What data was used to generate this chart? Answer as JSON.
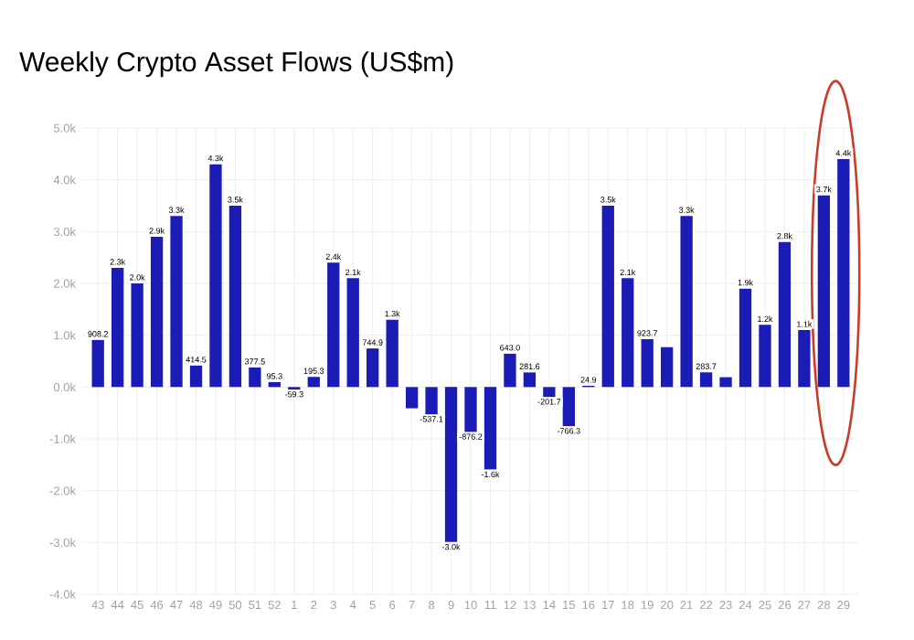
{
  "chart_data": {
    "type": "bar",
    "title": "Weekly Crypto Asset Flows (US$m)",
    "categories": [
      "43",
      "44",
      "45",
      "46",
      "47",
      "48",
      "49",
      "50",
      "51",
      "52",
      "1",
      "2",
      "3",
      "4",
      "5",
      "6",
      "7",
      "8",
      "9",
      "10",
      "11",
      "12",
      "13",
      "14",
      "15",
      "16",
      "17",
      "18",
      "19",
      "20",
      "21",
      "22",
      "23",
      "24",
      "25",
      "26",
      "27",
      "28",
      "29"
    ],
    "values": [
      908.2,
      2300,
      2000,
      2900,
      3300,
      414.5,
      4300,
      3500,
      377.5,
      95.3,
      -59.3,
      195.3,
      2400,
      2100,
      744.9,
      1300,
      -410,
      -537.1,
      -3000,
      -876.2,
      -1600,
      643.0,
      281.6,
      -201.7,
      -766.3,
      24.9,
      3500,
      2100,
      923.7,
      770,
      3300,
      283.7,
      190,
      1900,
      1200,
      2800,
      1100,
      3700,
      4400
    ],
    "value_labels": [
      "908.2",
      "2.3k",
      "2.0k",
      "2.9k",
      "3.3k",
      "414.5",
      "4.3k",
      "3.5k",
      "377.5",
      "95.3",
      "-59.3",
      "195.3",
      "2.4k",
      "2.1k",
      "744.9",
      "1.3k",
      null,
      "-537.1",
      "-3.0k",
      "-876.2",
      "-1.6k",
      "643.0",
      "281.6",
      "-201.7",
      "-766.3",
      "24.9",
      "3.5k",
      "2.1k",
      "923.7",
      null,
      "3.3k",
      "283.7",
      null,
      "1.9k",
      "1.2k",
      "2.8k",
      "1.1k",
      "3.7k",
      "4.4k"
    ],
    "color": "#1b1bb5",
    "ylim": [
      -4000,
      5000
    ],
    "yticks": [
      {
        "value": -4000,
        "label": "-4.0k"
      },
      {
        "value": -3000,
        "label": "-3.0k"
      },
      {
        "value": -2000,
        "label": "-2.0k"
      },
      {
        "value": -1000,
        "label": "-1.0k"
      },
      {
        "value": 0,
        "label": "0.0k"
      },
      {
        "value": 1000,
        "label": "1.0k"
      },
      {
        "value": 2000,
        "label": "2.0k"
      },
      {
        "value": 3000,
        "label": "3.0k"
      },
      {
        "value": 4000,
        "label": "4.0k"
      },
      {
        "value": 5000,
        "label": "5.0k"
      }
    ],
    "grid": true
  }
}
